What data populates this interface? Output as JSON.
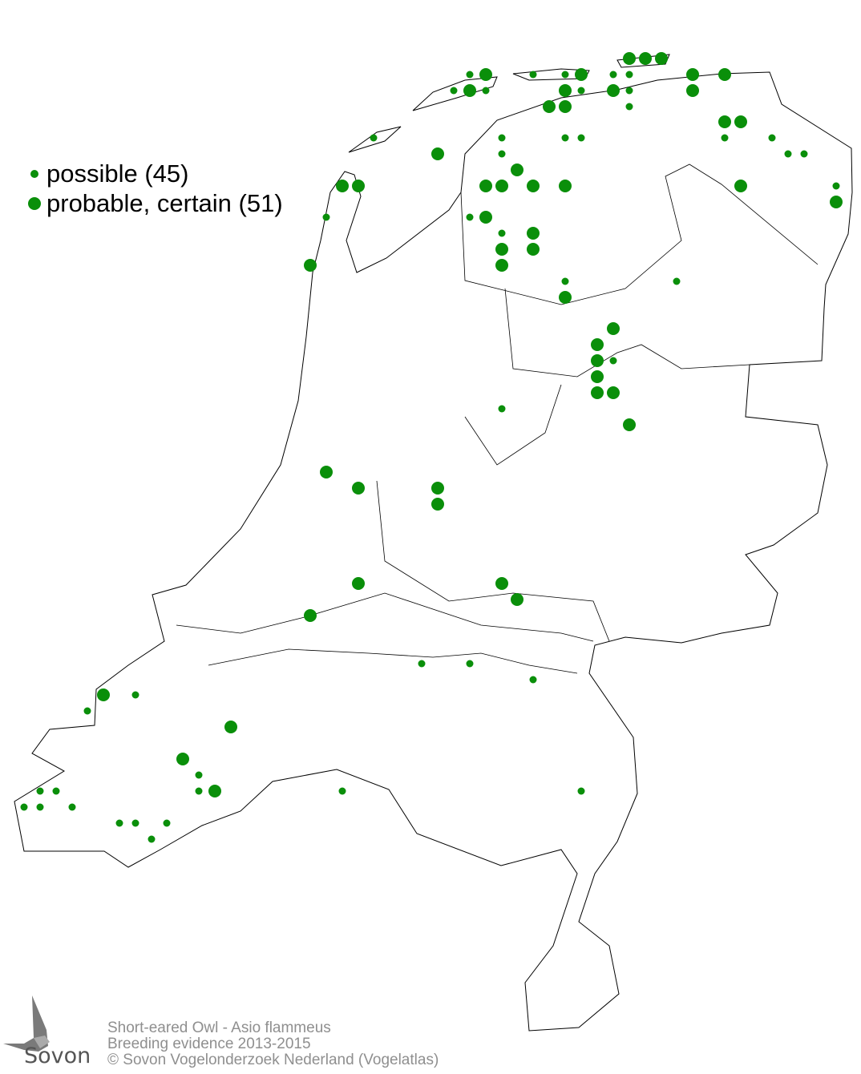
{
  "legend": {
    "items": [
      {
        "label": "possible (45)",
        "category": "possible",
        "count": 45,
        "size": "small"
      },
      {
        "label": "probable, certain (51)",
        "category": "probable-certain",
        "count": 51,
        "size": "large"
      }
    ]
  },
  "credits": {
    "species": "Short-eared Owl - Asio flammeus",
    "subtitle": "Breeding evidence 2013-2015",
    "copyright": "© Sovon Vogelonderzoek Nederland (Vogelatlas)"
  },
  "logo": {
    "text": "Sovon"
  },
  "colors": {
    "dot": "#0a8f0a",
    "outline": "#000000",
    "credits": "#8f8f8f"
  }
}
